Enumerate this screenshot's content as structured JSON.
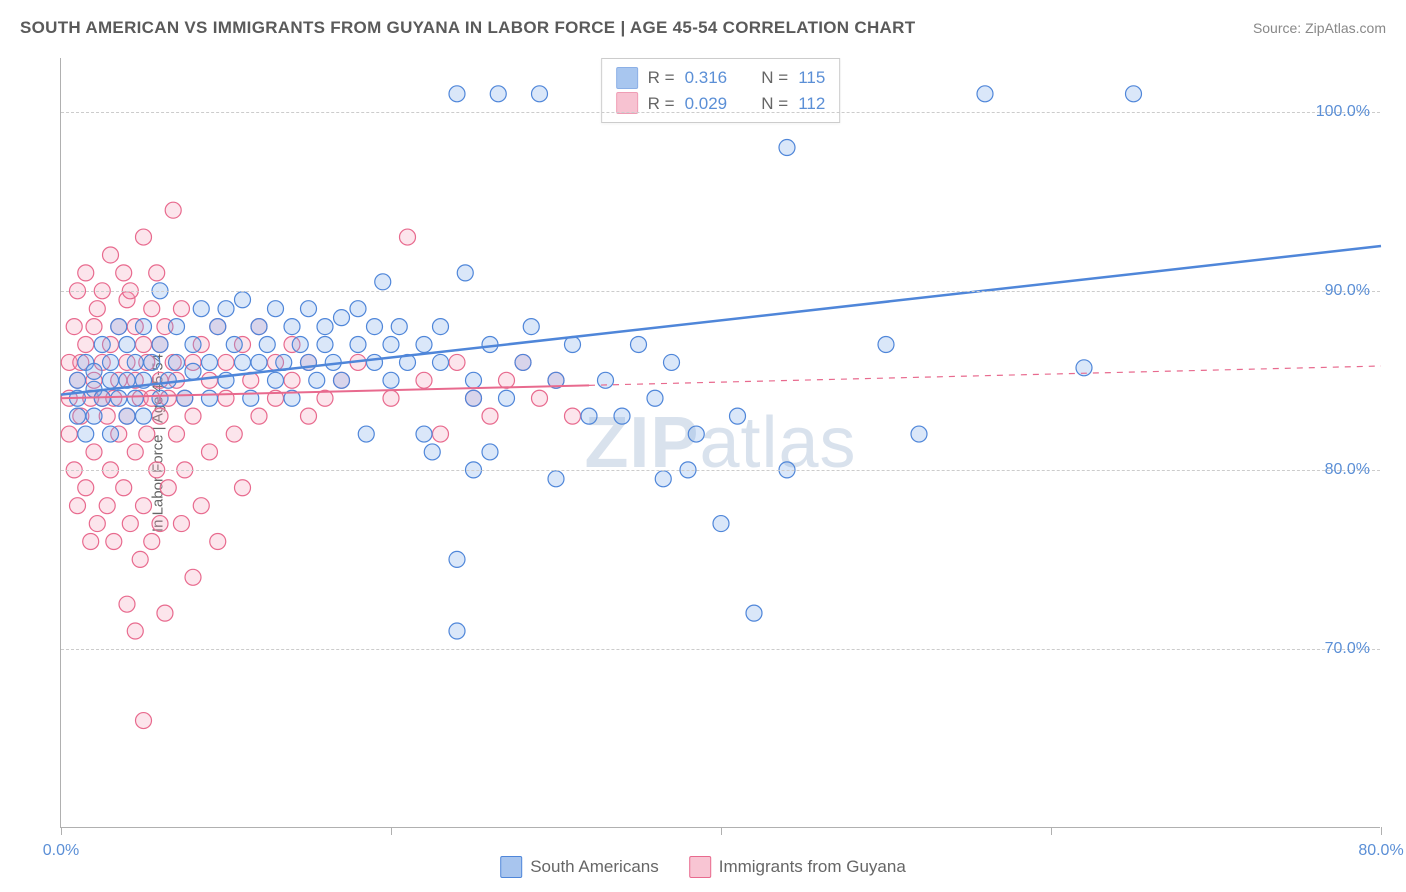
{
  "title": "SOUTH AMERICAN VS IMMIGRANTS FROM GUYANA IN LABOR FORCE | AGE 45-54 CORRELATION CHART",
  "source": "Source: ZipAtlas.com",
  "watermark_zip": "ZIP",
  "watermark_atlas": "atlas",
  "chart": {
    "type": "scatter",
    "xlim": [
      0,
      80
    ],
    "ylim": [
      60,
      103
    ],
    "x_ticks": [
      0,
      20,
      40,
      60,
      80
    ],
    "y_ticks": [
      70,
      80,
      90,
      100
    ],
    "y_gridlines": [
      70,
      80,
      90,
      100
    ],
    "x_tick_labels": [
      "0.0%",
      "",
      "",
      "",
      "80.0%"
    ],
    "y_tick_labels": [
      "70.0%",
      "80.0%",
      "90.0%",
      "100.0%"
    ],
    "ylabel": "In Labor Force | Age 45-54",
    "marker_radius": 8,
    "marker_stroke_width": 1.2,
    "marker_fill_opacity": 0.28,
    "background_color": "#ffffff",
    "grid_color": "#cccccc",
    "axis_color": "#b0b0b0",
    "series": [
      {
        "name": "South Americans",
        "color_stroke": "#4f86d9",
        "color_fill": "#7aa8e8",
        "R_label": "R  =",
        "R_value": "0.316",
        "N_label": "N  =",
        "N_value": "115",
        "trend_line": {
          "x0": 0,
          "y0": 84.2,
          "x1": 80,
          "y1": 92.5,
          "style": "solid",
          "width": 2.5,
          "solid_until_x": 80
        },
        "points": [
          [
            1,
            84
          ],
          [
            1,
            85
          ],
          [
            1,
            83
          ],
          [
            1.5,
            86
          ],
          [
            1.5,
            82
          ],
          [
            2,
            84.5
          ],
          [
            2,
            85.5
          ],
          [
            2,
            83
          ],
          [
            2.5,
            87
          ],
          [
            2.5,
            84
          ],
          [
            3,
            85
          ],
          [
            3,
            86
          ],
          [
            3,
            82
          ],
          [
            3.5,
            84
          ],
          [
            3.5,
            88
          ],
          [
            4,
            85
          ],
          [
            4,
            83
          ],
          [
            4,
            87
          ],
          [
            4.5,
            84
          ],
          [
            4.5,
            86
          ],
          [
            5,
            85
          ],
          [
            5,
            88
          ],
          [
            5,
            83
          ],
          [
            5.5,
            86
          ],
          [
            6,
            84
          ],
          [
            6,
            87
          ],
          [
            6,
            90
          ],
          [
            6.5,
            85
          ],
          [
            7,
            86
          ],
          [
            7,
            88
          ],
          [
            7.5,
            84
          ],
          [
            8,
            87
          ],
          [
            8,
            85.5
          ],
          [
            8.5,
            89
          ],
          [
            9,
            86
          ],
          [
            9,
            84
          ],
          [
            9.5,
            88
          ],
          [
            10,
            89
          ],
          [
            10,
            85
          ],
          [
            10.5,
            87
          ],
          [
            11,
            86
          ],
          [
            11,
            89.5
          ],
          [
            11.5,
            84
          ],
          [
            12,
            88
          ],
          [
            12,
            86
          ],
          [
            12.5,
            87
          ],
          [
            13,
            85
          ],
          [
            13,
            89
          ],
          [
            13.5,
            86
          ],
          [
            14,
            88
          ],
          [
            14,
            84
          ],
          [
            14.5,
            87
          ],
          [
            15,
            86
          ],
          [
            15,
            89
          ],
          [
            15.5,
            85
          ],
          [
            16,
            88
          ],
          [
            16,
            87
          ],
          [
            16.5,
            86
          ],
          [
            17,
            88.5
          ],
          [
            17,
            85
          ],
          [
            18,
            87
          ],
          [
            18,
            89
          ],
          [
            18.5,
            82
          ],
          [
            19,
            86
          ],
          [
            19,
            88
          ],
          [
            19.5,
            90.5
          ],
          [
            20,
            87
          ],
          [
            20,
            85
          ],
          [
            20.5,
            88
          ],
          [
            21,
            86
          ],
          [
            22,
            87
          ],
          [
            22,
            82
          ],
          [
            22.5,
            81
          ],
          [
            23,
            86
          ],
          [
            23,
            88
          ],
          [
            24,
            101
          ],
          [
            24.5,
            91
          ],
          [
            25,
            85
          ],
          [
            25,
            80
          ],
          [
            26,
            87
          ],
          [
            26.5,
            101
          ],
          [
            27,
            84
          ],
          [
            28,
            86
          ],
          [
            28.5,
            88
          ],
          [
            29,
            101
          ],
          [
            30,
            85
          ],
          [
            30,
            79.5
          ],
          [
            31,
            87
          ],
          [
            32,
            83
          ],
          [
            33,
            85
          ],
          [
            24,
            75
          ],
          [
            24,
            71
          ],
          [
            25,
            84
          ],
          [
            26,
            81
          ],
          [
            34,
            83
          ],
          [
            35,
            87
          ],
          [
            36,
            84
          ],
          [
            36.5,
            79.5
          ],
          [
            37,
            86
          ],
          [
            38,
            80
          ],
          [
            38.5,
            82
          ],
          [
            40,
            77
          ],
          [
            41,
            83
          ],
          [
            42,
            72
          ],
          [
            44,
            80
          ],
          [
            44,
            98
          ],
          [
            50,
            87
          ],
          [
            52,
            82
          ],
          [
            56,
            101
          ],
          [
            62,
            85.7
          ],
          [
            65,
            101
          ]
        ]
      },
      {
        "name": "Immigrants from Guyana",
        "color_stroke": "#e86a8e",
        "color_fill": "#f4a3ba",
        "R_label": "R  =",
        "R_value": "0.029",
        "N_label": "N  =",
        "N_value": "112",
        "trend_line": {
          "x0": 0,
          "y0": 84.0,
          "x1": 80,
          "y1": 85.8,
          "style": "dashed_after",
          "width": 2,
          "solid_until_x": 32
        },
        "points": [
          [
            0.5,
            84
          ],
          [
            0.5,
            86
          ],
          [
            0.5,
            82
          ],
          [
            0.8,
            88
          ],
          [
            0.8,
            80
          ],
          [
            1,
            85
          ],
          [
            1,
            90
          ],
          [
            1,
            78
          ],
          [
            1.2,
            86
          ],
          [
            1.2,
            83
          ],
          [
            1.5,
            87
          ],
          [
            1.5,
            79
          ],
          [
            1.5,
            91
          ],
          [
            1.8,
            84
          ],
          [
            1.8,
            76
          ],
          [
            2,
            85
          ],
          [
            2,
            88
          ],
          [
            2,
            81
          ],
          [
            2.2,
            89
          ],
          [
            2.2,
            77
          ],
          [
            2.5,
            86
          ],
          [
            2.5,
            84
          ],
          [
            2.5,
            90
          ],
          [
            2.8,
            83
          ],
          [
            2.8,
            78
          ],
          [
            3,
            87
          ],
          [
            3,
            80
          ],
          [
            3,
            92
          ],
          [
            3.2,
            84
          ],
          [
            3.2,
            76
          ],
          [
            3.5,
            88
          ],
          [
            3.5,
            82
          ],
          [
            3.5,
            85
          ],
          [
            3.8,
            79
          ],
          [
            3.8,
            91
          ],
          [
            4,
            86
          ],
          [
            4,
            83
          ],
          [
            4,
            89.5
          ],
          [
            4.2,
            77
          ],
          [
            4.2,
            90
          ],
          [
            4.5,
            85
          ],
          [
            4.5,
            81
          ],
          [
            4.5,
            88
          ],
          [
            4.8,
            84
          ],
          [
            4.8,
            75
          ],
          [
            5,
            87
          ],
          [
            5,
            78
          ],
          [
            5,
            93
          ],
          [
            5.2,
            82
          ],
          [
            5.2,
            86
          ],
          [
            5.5,
            89
          ],
          [
            5.5,
            76
          ],
          [
            5.5,
            84
          ],
          [
            5.8,
            80
          ],
          [
            5.8,
            91
          ],
          [
            6,
            85
          ],
          [
            6,
            83
          ],
          [
            6,
            87
          ],
          [
            6.3,
            72
          ],
          [
            6.3,
            88
          ],
          [
            6.5,
            84
          ],
          [
            6.5,
            79
          ],
          [
            6.8,
            86
          ],
          [
            6.8,
            94.5
          ],
          [
            7,
            82
          ],
          [
            7,
            85
          ],
          [
            7.3,
            77
          ],
          [
            7.3,
            89
          ],
          [
            7.5,
            84
          ],
          [
            7.5,
            80
          ],
          [
            8,
            86
          ],
          [
            8,
            83
          ],
          [
            8,
            74
          ],
          [
            8.5,
            87
          ],
          [
            8.5,
            78
          ],
          [
            9,
            85
          ],
          [
            9,
            81
          ],
          [
            9.5,
            88
          ],
          [
            9.5,
            76
          ],
          [
            10,
            84
          ],
          [
            10,
            86
          ],
          [
            10.5,
            82
          ],
          [
            11,
            87
          ],
          [
            11,
            79
          ],
          [
            11.5,
            85
          ],
          [
            12,
            88
          ],
          [
            12,
            83
          ],
          [
            13,
            84
          ],
          [
            13,
            86
          ],
          [
            14,
            85
          ],
          [
            14,
            87
          ],
          [
            15,
            83
          ],
          [
            15,
            86
          ],
          [
            16,
            84
          ],
          [
            17,
            85
          ],
          [
            18,
            86
          ],
          [
            20,
            84
          ],
          [
            4.5,
            71
          ],
          [
            5,
            66
          ],
          [
            4,
            72.5
          ],
          [
            6,
            77
          ],
          [
            21,
            93
          ],
          [
            22,
            85
          ],
          [
            23,
            82
          ],
          [
            24,
            86
          ],
          [
            25,
            84
          ],
          [
            26,
            83
          ],
          [
            27,
            85
          ],
          [
            28,
            86
          ],
          [
            29,
            84
          ],
          [
            30,
            85
          ],
          [
            31,
            83
          ]
        ]
      }
    ]
  },
  "bottom_legend": {
    "items": [
      {
        "label": "South Americans",
        "color_stroke": "#4f86d9",
        "color_fill": "#a8c5ee"
      },
      {
        "label": "Immigrants from Guyana",
        "color_stroke": "#e86a8e",
        "color_fill": "#f8c5d3"
      }
    ]
  }
}
